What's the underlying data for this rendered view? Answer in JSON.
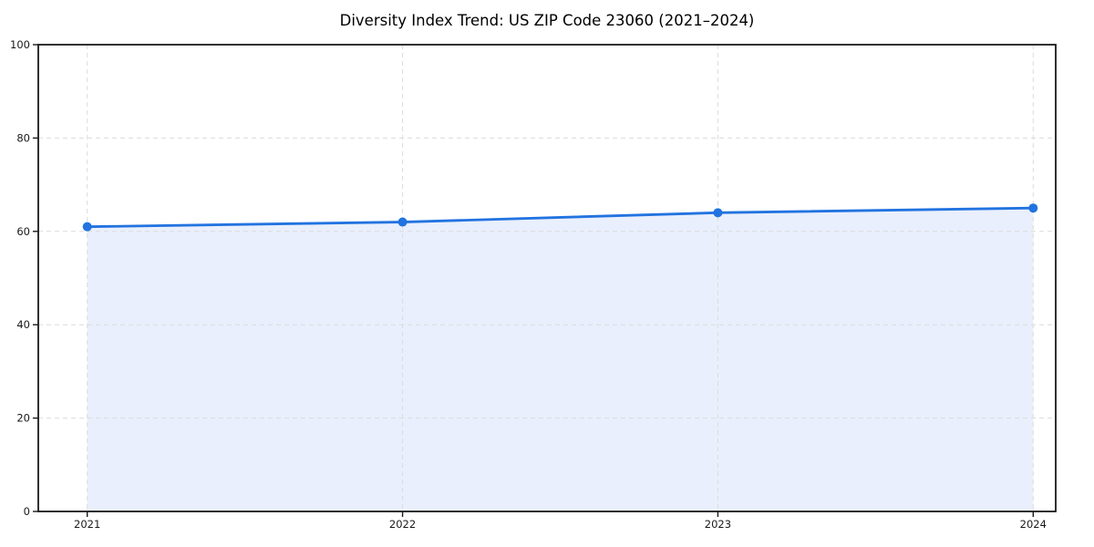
{
  "chart_data": {
    "type": "area",
    "title": "Diversity Index Trend: US ZIP Code 23060 (2021–2024)",
    "categories": [
      "2021",
      "2022",
      "2023",
      "2024"
    ],
    "series": [
      {
        "name": "Diversity Index",
        "values": [
          61,
          62,
          64,
          65
        ]
      }
    ],
    "xlabel": "",
    "ylabel": "",
    "ylim": [
      0,
      100
    ],
    "yticks": [
      0,
      20,
      40,
      60,
      80,
      100
    ],
    "grid": true,
    "grid_style": "dashed",
    "legend_position": "none",
    "marker": "circle",
    "colors": {
      "line": "#2273e0",
      "marker": "#2273e0",
      "fill": "#e9effc",
      "grid": "#dcdcdc",
      "spine": "#1a1a1a",
      "tick": "#1a1a1a",
      "background": "#ffffff",
      "title_text": "#000000",
      "tick_text": "#1a1a1a"
    }
  }
}
